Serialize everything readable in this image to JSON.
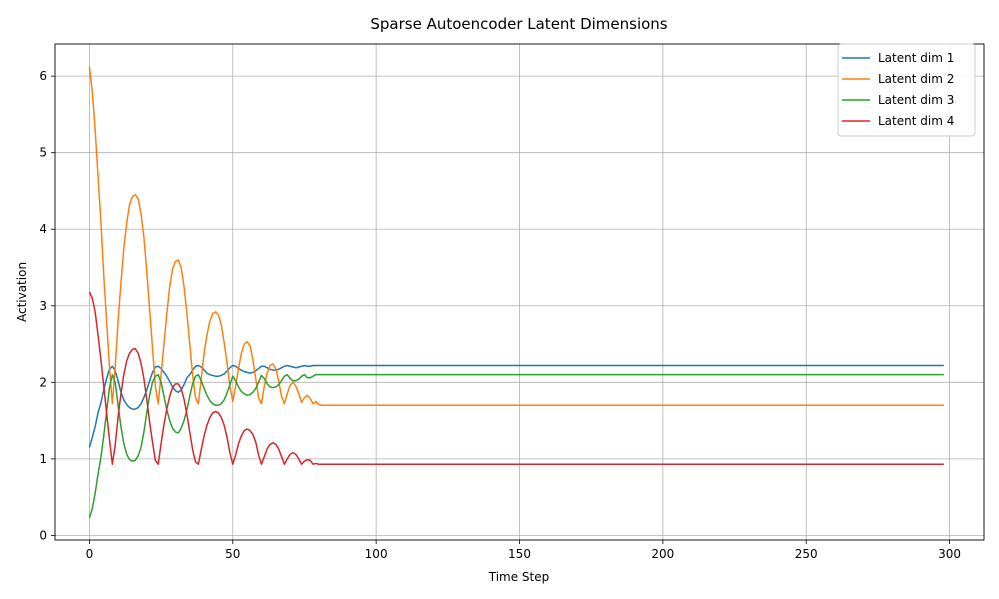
{
  "chart_data": {
    "type": "line",
    "title": "Sparse Autoencoder Latent Dimensions",
    "xlabel": "Time Step",
    "ylabel": "Activation",
    "xlim": [
      -12,
      312
    ],
    "ylim": [
      -0.06,
      6.42
    ],
    "xticks": [
      0,
      50,
      100,
      150,
      200,
      250,
      300
    ],
    "yticks": [
      0,
      1,
      2,
      3,
      4,
      5,
      6
    ],
    "grid": true,
    "legend_position": "top-right",
    "series": [
      {
        "name": "Latent dim 1",
        "color": "#1f77b4",
        "points": [
          [
            0,
            1.15
          ],
          [
            1,
            1.28
          ],
          [
            2,
            1.42
          ],
          [
            3,
            1.6
          ],
          [
            4,
            1.73
          ],
          [
            5,
            1.9
          ],
          [
            6,
            2.05
          ],
          [
            7,
            2.17
          ],
          [
            8,
            2.21
          ],
          [
            9,
            2.15
          ],
          [
            10,
            2.02
          ],
          [
            11,
            1.87
          ],
          [
            12,
            1.77
          ],
          [
            13,
            1.71
          ],
          [
            14,
            1.67
          ],
          [
            15,
            1.65
          ],
          [
            16,
            1.65
          ],
          [
            17,
            1.67
          ],
          [
            18,
            1.72
          ],
          [
            19,
            1.8
          ],
          [
            20,
            1.9
          ],
          [
            21,
            2.02
          ],
          [
            22,
            2.13
          ],
          [
            23,
            2.2
          ],
          [
            24,
            2.21
          ],
          [
            25,
            2.18
          ],
          [
            26,
            2.13
          ],
          [
            27,
            2.08
          ],
          [
            28,
            2.01
          ],
          [
            29,
            1.94
          ],
          [
            30,
            1.89
          ],
          [
            31,
            1.87
          ],
          [
            32,
            1.9
          ],
          [
            33,
            1.97
          ],
          [
            34,
            2.06
          ],
          [
            35,
            2.1
          ],
          [
            36,
            2.16
          ],
          [
            37,
            2.21
          ],
          [
            38,
            2.22
          ],
          [
            39,
            2.2
          ],
          [
            40,
            2.16
          ],
          [
            41,
            2.12
          ],
          [
            42,
            2.1
          ],
          [
            43,
            2.09
          ],
          [
            44,
            2.08
          ],
          [
            45,
            2.08
          ],
          [
            46,
            2.09
          ],
          [
            47,
            2.11
          ],
          [
            48,
            2.15
          ],
          [
            49,
            2.19
          ],
          [
            50,
            2.22
          ],
          [
            51,
            2.21
          ],
          [
            52,
            2.18
          ],
          [
            53,
            2.16
          ],
          [
            54,
            2.14
          ],
          [
            55,
            2.13
          ],
          [
            56,
            2.12
          ],
          [
            57,
            2.13
          ],
          [
            58,
            2.15
          ],
          [
            59,
            2.18
          ],
          [
            60,
            2.21
          ],
          [
            61,
            2.21
          ],
          [
            62,
            2.19
          ],
          [
            63,
            2.17
          ],
          [
            64,
            2.16
          ],
          [
            65,
            2.16
          ],
          [
            66,
            2.17
          ],
          [
            67,
            2.19
          ],
          [
            68,
            2.21
          ],
          [
            69,
            2.22
          ],
          [
            70,
            2.21
          ],
          [
            71,
            2.2
          ],
          [
            72,
            2.19
          ],
          [
            73,
            2.2
          ],
          [
            74,
            2.21
          ],
          [
            75,
            2.22
          ],
          [
            76,
            2.21
          ],
          [
            77,
            2.21
          ],
          [
            78,
            2.22
          ],
          [
            79,
            2.22
          ],
          [
            80,
            2.22
          ],
          [
            298,
            2.22
          ]
        ]
      },
      {
        "name": "Latent dim 2",
        "color": "#ff7f0e",
        "points": [
          [
            0,
            6.12
          ],
          [
            1,
            5.8
          ],
          [
            2,
            5.3
          ],
          [
            3,
            4.7
          ],
          [
            4,
            4.1
          ],
          [
            5,
            3.4
          ],
          [
            6,
            2.8
          ],
          [
            7,
            2.2
          ],
          [
            8,
            1.72
          ],
          [
            9,
            2.2
          ],
          [
            10,
            2.8
          ],
          [
            11,
            3.3
          ],
          [
            12,
            3.75
          ],
          [
            13,
            4.08
          ],
          [
            14,
            4.32
          ],
          [
            15,
            4.43
          ],
          [
            16,
            4.45
          ],
          [
            17,
            4.4
          ],
          [
            18,
            4.2
          ],
          [
            19,
            3.9
          ],
          [
            20,
            3.45
          ],
          [
            21,
            2.95
          ],
          [
            22,
            2.45
          ],
          [
            23,
            1.95
          ],
          [
            24,
            1.72
          ],
          [
            25,
            2.1
          ],
          [
            26,
            2.5
          ],
          [
            27,
            2.9
          ],
          [
            28,
            3.25
          ],
          [
            29,
            3.48
          ],
          [
            30,
            3.58
          ],
          [
            31,
            3.6
          ],
          [
            32,
            3.5
          ],
          [
            33,
            3.25
          ],
          [
            34,
            2.9
          ],
          [
            35,
            2.5
          ],
          [
            36,
            2.1
          ],
          [
            37,
            1.8
          ],
          [
            38,
            1.72
          ],
          [
            39,
            2.05
          ],
          [
            40,
            2.38
          ],
          [
            41,
            2.62
          ],
          [
            42,
            2.8
          ],
          [
            43,
            2.9
          ],
          [
            44,
            2.92
          ],
          [
            45,
            2.88
          ],
          [
            46,
            2.75
          ],
          [
            47,
            2.52
          ],
          [
            48,
            2.25
          ],
          [
            49,
            1.95
          ],
          [
            50,
            1.75
          ],
          [
            51,
            1.95
          ],
          [
            52,
            2.18
          ],
          [
            53,
            2.38
          ],
          [
            54,
            2.5
          ],
          [
            55,
            2.53
          ],
          [
            56,
            2.48
          ],
          [
            57,
            2.3
          ],
          [
            58,
            2.05
          ],
          [
            59,
            1.8
          ],
          [
            60,
            1.72
          ],
          [
            61,
            1.95
          ],
          [
            62,
            2.12
          ],
          [
            63,
            2.22
          ],
          [
            64,
            2.24
          ],
          [
            65,
            2.18
          ],
          [
            66,
            2.02
          ],
          [
            67,
            1.82
          ],
          [
            68,
            1.72
          ],
          [
            69,
            1.85
          ],
          [
            70,
            1.96
          ],
          [
            71,
            2.0
          ],
          [
            72,
            1.95
          ],
          [
            73,
            1.85
          ],
          [
            74,
            1.74
          ],
          [
            75,
            1.8
          ],
          [
            76,
            1.83
          ],
          [
            77,
            1.79
          ],
          [
            78,
            1.72
          ],
          [
            79,
            1.75
          ],
          [
            80,
            1.71
          ],
          [
            81,
            1.7
          ],
          [
            298,
            1.7
          ]
        ]
      },
      {
        "name": "Latent dim 3",
        "color": "#2ca02c",
        "points": [
          [
            0,
            0.23
          ],
          [
            1,
            0.35
          ],
          [
            2,
            0.55
          ],
          [
            3,
            0.8
          ],
          [
            4,
            1.02
          ],
          [
            5,
            1.3
          ],
          [
            6,
            1.62
          ],
          [
            7,
            1.93
          ],
          [
            8,
            2.1
          ],
          [
            9,
            2.0
          ],
          [
            10,
            1.7
          ],
          [
            11,
            1.42
          ],
          [
            12,
            1.2
          ],
          [
            13,
            1.06
          ],
          [
            14,
            0.99
          ],
          [
            15,
            0.97
          ],
          [
            16,
            0.98
          ],
          [
            17,
            1.04
          ],
          [
            18,
            1.15
          ],
          [
            19,
            1.35
          ],
          [
            20,
            1.6
          ],
          [
            21,
            1.83
          ],
          [
            22,
            2.0
          ],
          [
            23,
            2.08
          ],
          [
            24,
            2.1
          ],
          [
            25,
            2.0
          ],
          [
            26,
            1.82
          ],
          [
            27,
            1.64
          ],
          [
            28,
            1.5
          ],
          [
            29,
            1.4
          ],
          [
            30,
            1.35
          ],
          [
            31,
            1.34
          ],
          [
            32,
            1.4
          ],
          [
            33,
            1.5
          ],
          [
            34,
            1.64
          ],
          [
            35,
            1.82
          ],
          [
            36,
            1.98
          ],
          [
            37,
            2.08
          ],
          [
            38,
            2.1
          ],
          [
            39,
            2.02
          ],
          [
            40,
            1.92
          ],
          [
            41,
            1.83
          ],
          [
            42,
            1.76
          ],
          [
            43,
            1.72
          ],
          [
            44,
            1.7
          ],
          [
            45,
            1.7
          ],
          [
            46,
            1.72
          ],
          [
            47,
            1.77
          ],
          [
            48,
            1.86
          ],
          [
            49,
            1.97
          ],
          [
            50,
            2.08
          ],
          [
            51,
            2.02
          ],
          [
            52,
            1.94
          ],
          [
            53,
            1.88
          ],
          [
            54,
            1.85
          ],
          [
            55,
            1.83
          ],
          [
            56,
            1.84
          ],
          [
            57,
            1.87
          ],
          [
            58,
            1.92
          ],
          [
            59,
            2.0
          ],
          [
            60,
            2.09
          ],
          [
            61,
            2.05
          ],
          [
            62,
            1.98
          ],
          [
            63,
            1.94
          ],
          [
            64,
            1.93
          ],
          [
            65,
            1.94
          ],
          [
            66,
            1.97
          ],
          [
            67,
            2.02
          ],
          [
            68,
            2.08
          ],
          [
            69,
            2.1
          ],
          [
            70,
            2.05
          ],
          [
            71,
            2.02
          ],
          [
            72,
            2.02
          ],
          [
            73,
            2.04
          ],
          [
            74,
            2.08
          ],
          [
            75,
            2.1
          ],
          [
            76,
            2.06
          ],
          [
            77,
            2.06
          ],
          [
            78,
            2.08
          ],
          [
            79,
            2.1
          ],
          [
            80,
            2.1
          ],
          [
            298,
            2.1
          ]
        ]
      },
      {
        "name": "Latent dim 4",
        "color": "#d62728",
        "points": [
          [
            0,
            3.18
          ],
          [
            1,
            3.1
          ],
          [
            2,
            2.92
          ],
          [
            3,
            2.62
          ],
          [
            4,
            2.3
          ],
          [
            5,
            1.95
          ],
          [
            6,
            1.6
          ],
          [
            7,
            1.25
          ],
          [
            8,
            0.93
          ],
          [
            9,
            1.18
          ],
          [
            10,
            1.55
          ],
          [
            11,
            1.85
          ],
          [
            12,
            2.1
          ],
          [
            13,
            2.28
          ],
          [
            14,
            2.38
          ],
          [
            15,
            2.43
          ],
          [
            16,
            2.44
          ],
          [
            17,
            2.38
          ],
          [
            18,
            2.25
          ],
          [
            19,
            2.05
          ],
          [
            20,
            1.78
          ],
          [
            21,
            1.48
          ],
          [
            22,
            1.22
          ],
          [
            23,
            0.98
          ],
          [
            24,
            0.93
          ],
          [
            25,
            1.2
          ],
          [
            26,
            1.45
          ],
          [
            27,
            1.65
          ],
          [
            28,
            1.82
          ],
          [
            29,
            1.93
          ],
          [
            30,
            1.98
          ],
          [
            31,
            1.98
          ],
          [
            32,
            1.92
          ],
          [
            33,
            1.78
          ],
          [
            34,
            1.58
          ],
          [
            35,
            1.35
          ],
          [
            36,
            1.12
          ],
          [
            37,
            0.96
          ],
          [
            38,
            0.93
          ],
          [
            39,
            1.12
          ],
          [
            40,
            1.3
          ],
          [
            41,
            1.44
          ],
          [
            42,
            1.54
          ],
          [
            43,
            1.6
          ],
          [
            44,
            1.62
          ],
          [
            45,
            1.6
          ],
          [
            46,
            1.54
          ],
          [
            47,
            1.44
          ],
          [
            48,
            1.28
          ],
          [
            49,
            1.08
          ],
          [
            50,
            0.93
          ],
          [
            51,
            1.05
          ],
          [
            52,
            1.2
          ],
          [
            53,
            1.3
          ],
          [
            54,
            1.37
          ],
          [
            55,
            1.39
          ],
          [
            56,
            1.37
          ],
          [
            57,
            1.32
          ],
          [
            58,
            1.22
          ],
          [
            59,
            1.05
          ],
          [
            60,
            0.93
          ],
          [
            61,
            1.03
          ],
          [
            62,
            1.13
          ],
          [
            63,
            1.19
          ],
          [
            64,
            1.21
          ],
          [
            65,
            1.19
          ],
          [
            66,
            1.13
          ],
          [
            67,
            1.03
          ],
          [
            68,
            0.93
          ],
          [
            69,
            1.0
          ],
          [
            70,
            1.06
          ],
          [
            71,
            1.08
          ],
          [
            72,
            1.06
          ],
          [
            73,
            1.0
          ],
          [
            74,
            0.93
          ],
          [
            75,
            0.97
          ],
          [
            76,
            0.99
          ],
          [
            77,
            0.98
          ],
          [
            78,
            0.93
          ],
          [
            79,
            0.94
          ],
          [
            80,
            0.93
          ],
          [
            298,
            0.93
          ]
        ]
      }
    ]
  }
}
